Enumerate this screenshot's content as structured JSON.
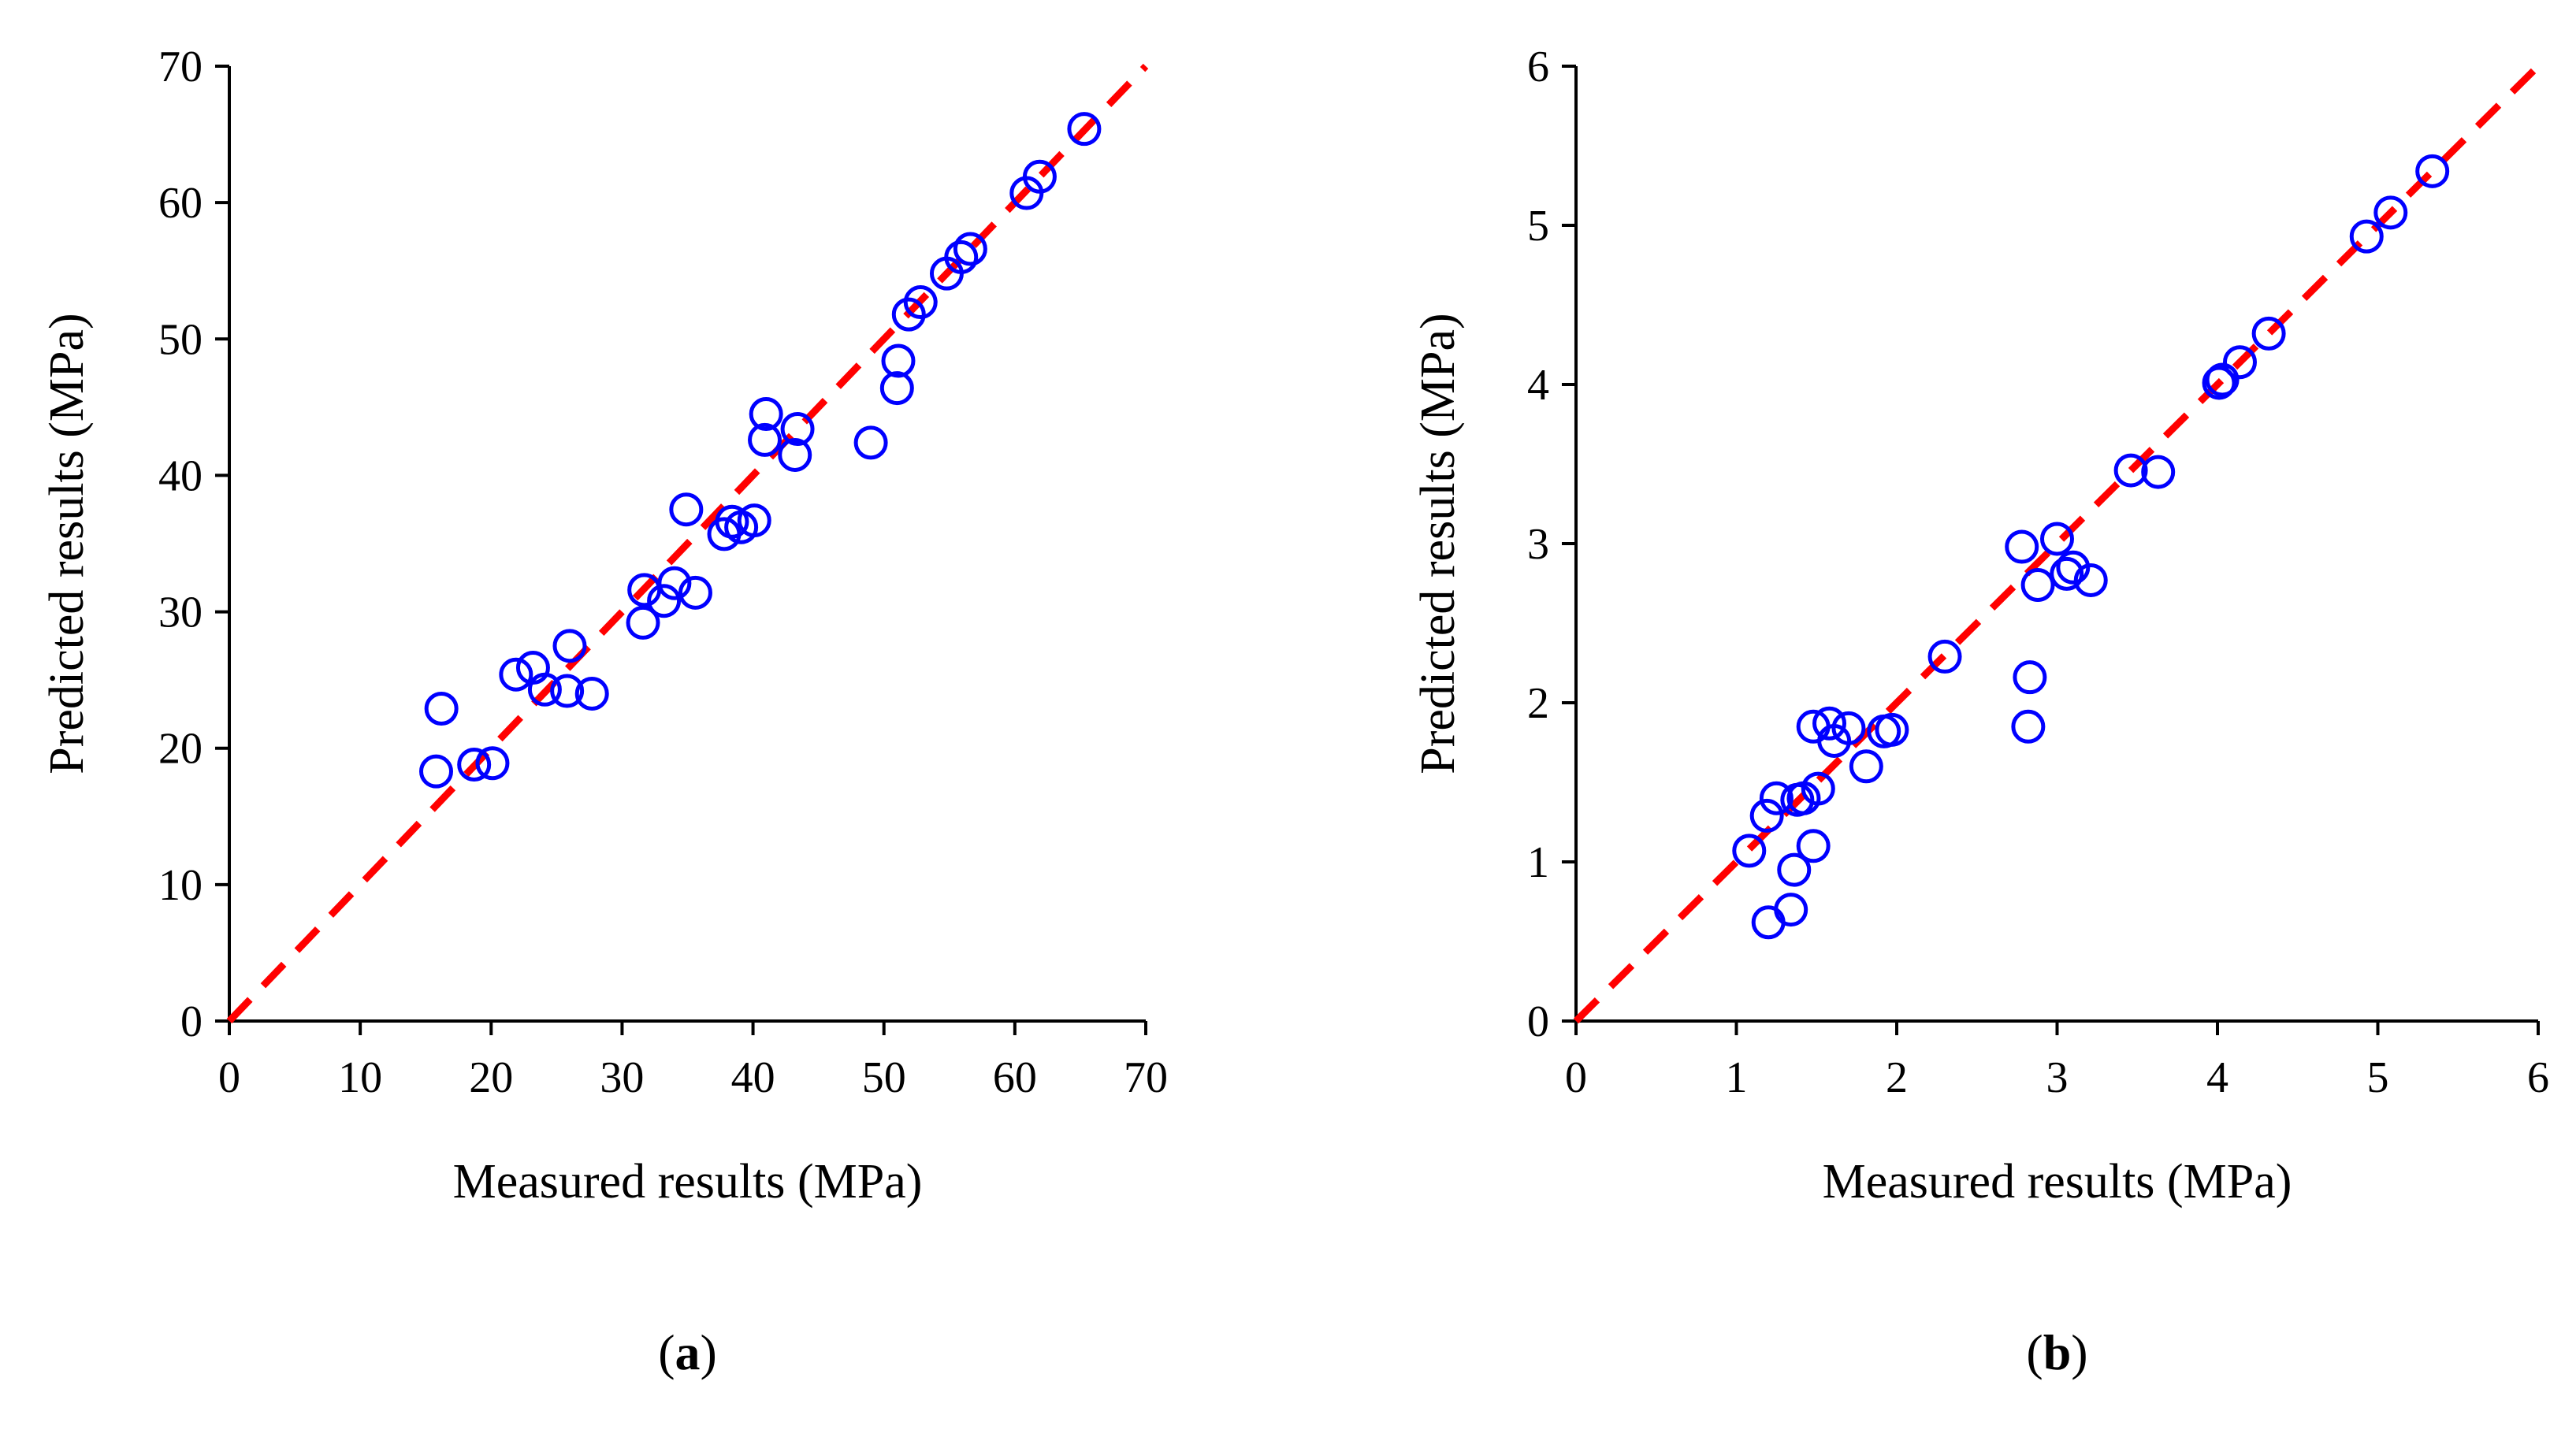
{
  "colors": {
    "points": "#0000ff",
    "reference_line": "#ff0000",
    "axes": "#000000"
  },
  "chart_data": [
    {
      "type": "scatter",
      "panel_label": "a",
      "title": "",
      "xlabel": "Measured results (MPa)",
      "ylabel": "Predicted results (MPa)",
      "xlim": [
        0,
        70
      ],
      "ylim": [
        0,
        70
      ],
      "xticks": [
        0,
        10,
        20,
        30,
        40,
        50,
        60,
        70
      ],
      "yticks": [
        0,
        10,
        20,
        30,
        40,
        50,
        60,
        70
      ],
      "grid": false,
      "reference_line": {
        "style": "dashed",
        "from": [
          0,
          0
        ],
        "to": [
          70,
          70
        ]
      },
      "points": [
        {
          "x": 15.8,
          "y": 18.3
        },
        {
          "x": 16.2,
          "y": 22.9
        },
        {
          "x": 18.7,
          "y": 18.8
        },
        {
          "x": 20.1,
          "y": 18.9
        },
        {
          "x": 21.9,
          "y": 25.4
        },
        {
          "x": 23.2,
          "y": 25.9
        },
        {
          "x": 24.1,
          "y": 24.3
        },
        {
          "x": 25.8,
          "y": 24.2
        },
        {
          "x": 26.0,
          "y": 27.5
        },
        {
          "x": 27.7,
          "y": 24.0
        },
        {
          "x": 31.6,
          "y": 29.2
        },
        {
          "x": 31.7,
          "y": 31.6
        },
        {
          "x": 33.2,
          "y": 30.8
        },
        {
          "x": 34.0,
          "y": 32.1
        },
        {
          "x": 34.9,
          "y": 37.5
        },
        {
          "x": 35.6,
          "y": 31.4
        },
        {
          "x": 37.8,
          "y": 35.7
        },
        {
          "x": 38.4,
          "y": 36.6
        },
        {
          "x": 39.1,
          "y": 36.2
        },
        {
          "x": 40.1,
          "y": 36.7
        },
        {
          "x": 40.9,
          "y": 42.6
        },
        {
          "x": 41.0,
          "y": 44.5
        },
        {
          "x": 43.2,
          "y": 41.5
        },
        {
          "x": 43.4,
          "y": 43.4
        },
        {
          "x": 49.0,
          "y": 42.4
        },
        {
          "x": 51.0,
          "y": 46.4
        },
        {
          "x": 51.1,
          "y": 48.4
        },
        {
          "x": 51.9,
          "y": 51.8
        },
        {
          "x": 52.8,
          "y": 52.7
        },
        {
          "x": 54.8,
          "y": 54.8
        },
        {
          "x": 55.9,
          "y": 56.0
        },
        {
          "x": 56.6,
          "y": 56.6
        },
        {
          "x": 60.9,
          "y": 60.7
        },
        {
          "x": 61.9,
          "y": 61.9
        },
        {
          "x": 65.3,
          "y": 65.4
        }
      ]
    },
    {
      "type": "scatter",
      "panel_label": "b",
      "title": "",
      "xlabel": "Measured results (MPa)",
      "ylabel": "Predicted results (MPa)",
      "xlim": [
        0,
        6
      ],
      "ylim": [
        0,
        6
      ],
      "xticks": [
        0,
        1,
        2,
        3,
        4,
        5,
        6
      ],
      "yticks": [
        0,
        1,
        2,
        3,
        4,
        5,
        6
      ],
      "grid": false,
      "reference_line": {
        "style": "dashed",
        "from": [
          0,
          0
        ],
        "to": [
          6,
          6
        ]
      },
      "points": [
        {
          "x": 1.08,
          "y": 1.07
        },
        {
          "x": 1.19,
          "y": 1.29
        },
        {
          "x": 1.2,
          "y": 0.62
        },
        {
          "x": 1.25,
          "y": 1.4
        },
        {
          "x": 1.34,
          "y": 0.7
        },
        {
          "x": 1.36,
          "y": 0.95
        },
        {
          "x": 1.38,
          "y": 1.39
        },
        {
          "x": 1.42,
          "y": 1.4
        },
        {
          "x": 1.48,
          "y": 1.1
        },
        {
          "x": 1.48,
          "y": 1.85
        },
        {
          "x": 1.51,
          "y": 1.46
        },
        {
          "x": 1.58,
          "y": 1.87
        },
        {
          "x": 1.61,
          "y": 1.76
        },
        {
          "x": 1.7,
          "y": 1.84
        },
        {
          "x": 1.81,
          "y": 1.6
        },
        {
          "x": 1.92,
          "y": 1.82
        },
        {
          "x": 1.97,
          "y": 1.83
        },
        {
          "x": 2.3,
          "y": 2.29
        },
        {
          "x": 2.78,
          "y": 2.98
        },
        {
          "x": 2.82,
          "y": 1.85
        },
        {
          "x": 2.83,
          "y": 2.16
        },
        {
          "x": 2.88,
          "y": 2.74
        },
        {
          "x": 3.0,
          "y": 3.03
        },
        {
          "x": 3.06,
          "y": 2.81
        },
        {
          "x": 3.1,
          "y": 2.85
        },
        {
          "x": 3.21,
          "y": 2.77
        },
        {
          "x": 3.46,
          "y": 3.46
        },
        {
          "x": 3.63,
          "y": 3.45
        },
        {
          "x": 4.01,
          "y": 4.01
        },
        {
          "x": 4.03,
          "y": 4.03
        },
        {
          "x": 4.14,
          "y": 4.14
        },
        {
          "x": 4.32,
          "y": 4.32
        },
        {
          "x": 4.93,
          "y": 4.93
        },
        {
          "x": 5.08,
          "y": 5.08
        },
        {
          "x": 5.34,
          "y": 5.34
        }
      ]
    }
  ]
}
